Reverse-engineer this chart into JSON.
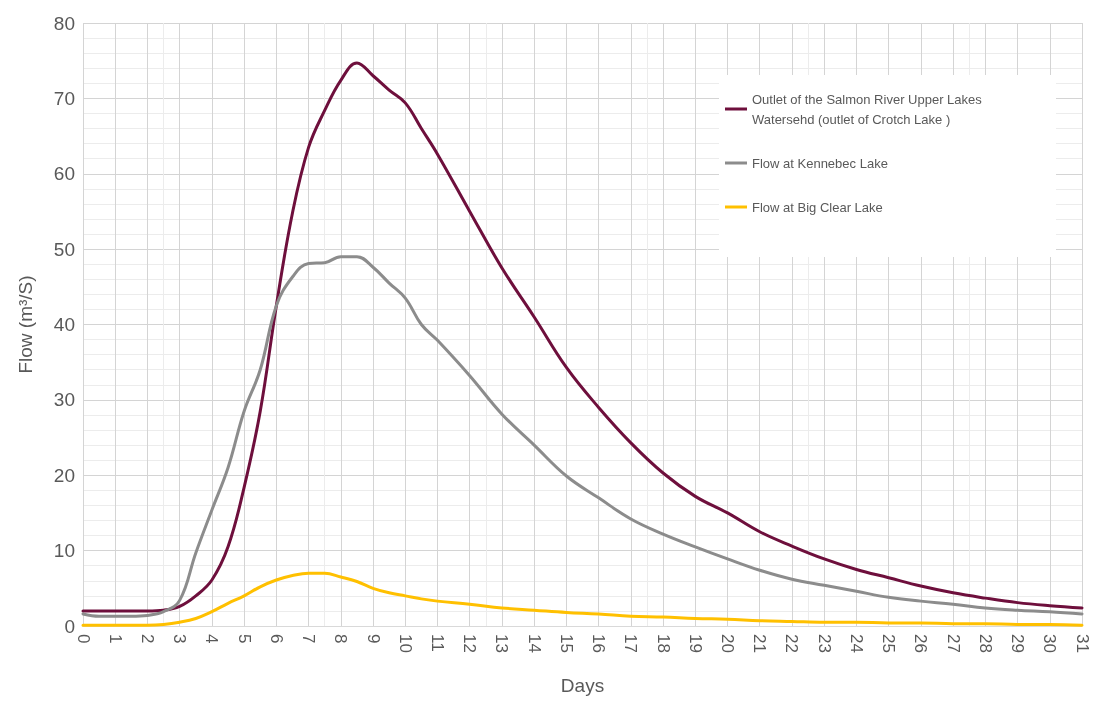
{
  "chart_data": {
    "type": "line",
    "xlabel": "Days",
    "ylabel": "Flow (m³/S)",
    "x": [
      0,
      0.5,
      1,
      1.5,
      2,
      2.5,
      3,
      3.5,
      4,
      4.5,
      5,
      5.5,
      6,
      6.5,
      7,
      7.5,
      8,
      8.5,
      9,
      9.5,
      10,
      10.5,
      11,
      12,
      13,
      14,
      15,
      16,
      17,
      18,
      19,
      20,
      21,
      22,
      23,
      24,
      25,
      26,
      27,
      28,
      29,
      30,
      31
    ],
    "series": [
      {
        "name": "Outlet of the Salmon River Upper Lakes Watersehd (outlet of Crotch Lake )",
        "color": "#6e0f3c",
        "values": [
          2,
          2,
          2,
          2,
          2,
          2.1,
          2.6,
          4,
          6.1,
          10.5,
          18.4,
          28.5,
          42.5,
          54.8,
          63.5,
          68.4,
          72.4,
          74.7,
          73,
          71.1,
          69.4,
          66,
          62.6,
          55,
          47.5,
          41,
          34.3,
          29,
          24.3,
          20.3,
          17.2,
          15,
          12.5,
          10.6,
          8.9,
          7.5,
          6.4,
          5.3,
          4.4,
          3.7,
          3.1,
          2.7,
          2.4
        ]
      },
      {
        "name": "Flow at Kennebec Lake",
        "color": "#8c8c8c",
        "values": [
          1.6,
          1.3,
          1.3,
          1.3,
          1.4,
          1.9,
          3.4,
          9.7,
          15.4,
          21,
          28.5,
          34,
          42.5,
          46.3,
          48.1,
          48.2,
          49,
          49,
          47.6,
          45.5,
          43.5,
          40,
          37.9,
          33.2,
          28.1,
          24,
          19.9,
          17,
          14.2,
          12.2,
          10.5,
          8.9,
          7.4,
          6.2,
          5.4,
          4.6,
          3.8,
          3.3,
          2.9,
          2.4,
          2.1,
          1.9,
          1.6
        ]
      },
      {
        "name": "Flow at Big Clear Lake",
        "color": "#ffc000",
        "values": [
          0.1,
          0.1,
          0.1,
          0.1,
          0.1,
          0.2,
          0.5,
          1,
          1.9,
          3,
          4,
          5.2,
          6.1,
          6.7,
          7,
          7,
          6.5,
          5.9,
          5,
          4.4,
          4,
          3.6,
          3.3,
          2.9,
          2.4,
          2.1,
          1.8,
          1.6,
          1.3,
          1.2,
          1,
          0.9,
          0.7,
          0.6,
          0.5,
          0.5,
          0.4,
          0.4,
          0.3,
          0.3,
          0.2,
          0.2,
          0.1
        ]
      }
    ],
    "xlim": [
      0,
      31
    ],
    "xticks": [
      0,
      1,
      2,
      3,
      4,
      5,
      6,
      7,
      8,
      9,
      10,
      11,
      12,
      13,
      14,
      15,
      16,
      17,
      18,
      19,
      20,
      21,
      22,
      23,
      24,
      25,
      26,
      27,
      28,
      29,
      30,
      31
    ],
    "ylim": [
      0,
      80
    ],
    "yticks": [
      0,
      10,
      20,
      30,
      40,
      50,
      60,
      70,
      80
    ],
    "grid": true,
    "legend": "top right",
    "marker": "none",
    "line_style": "solid"
  }
}
